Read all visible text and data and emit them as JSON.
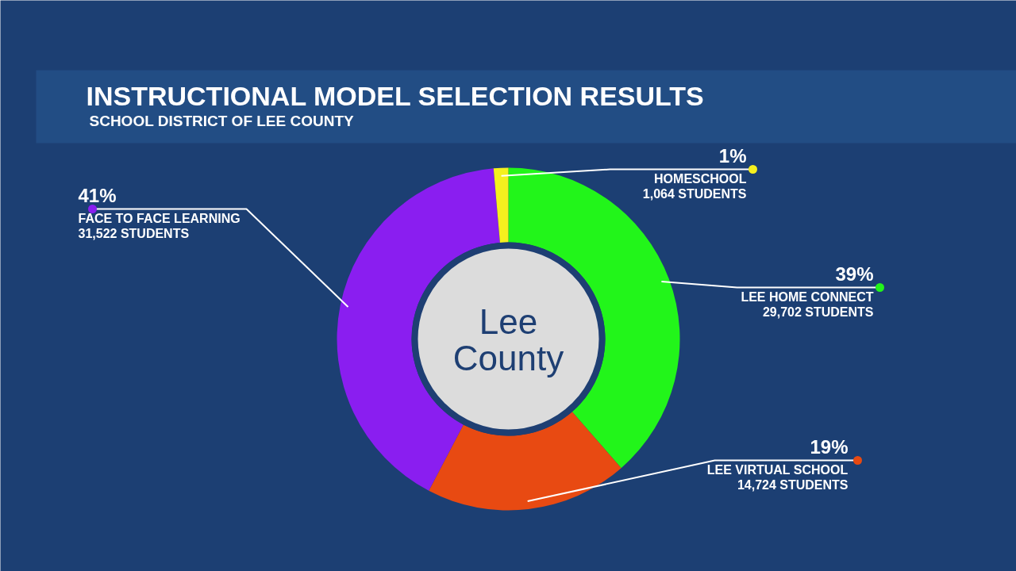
{
  "chart_data": {
    "type": "donut",
    "title": "INSTRUCTIONAL MODEL SELECTION RESULTS",
    "subtitle": "SCHOOL DISTRICT OF LEE COUNTY",
    "categories": [
      "LEE HOME CONNECT",
      "LEE VIRTUAL SCHOOL",
      "FACE TO FACE LEARNING",
      "HOMESCHOOL"
    ],
    "values": [
      29702,
      14724,
      31522,
      1064
    ],
    "colors": [
      "#22f51a",
      "#e84a12",
      "#8a1ef0",
      "#f5f01e"
    ],
    "value_labels": [
      "29,702 STUDENTS",
      "14,724 STUDENTS",
      "31,522 STUDENTS",
      "1,064 STUDENTS"
    ],
    "annotations": [
      {
        "text": "39%",
        "x": "LEE HOME CONNECT"
      },
      {
        "text": "19%",
        "x": "LEE VIRTUAL SCHOOL"
      },
      {
        "text": "41%",
        "x": "FACE TO FACE LEARNING"
      },
      {
        "text": "1%",
        "x": "HOMESCHOOL"
      },
      "Lee County"
    ],
    "legend": "top left"
  }
}
